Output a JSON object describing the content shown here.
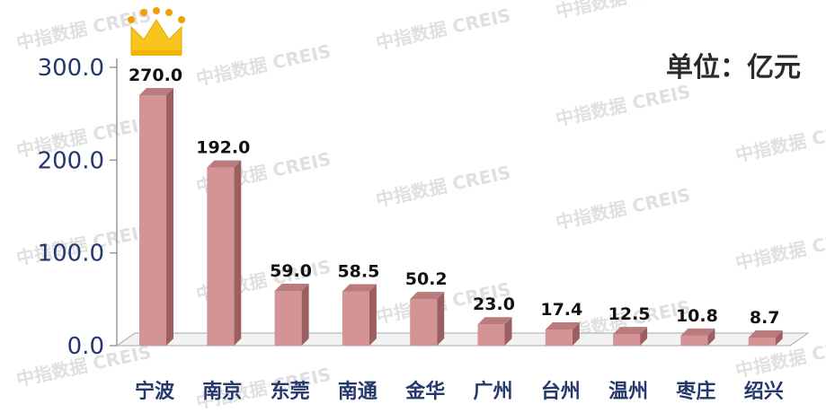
{
  "unit_label": "单位：亿元",
  "watermark": "中指数据 CREIS",
  "chart_data": {
    "type": "bar",
    "categories": [
      "宁波",
      "南京",
      "东莞",
      "南通",
      "金华",
      "广州",
      "台州",
      "温州",
      "枣庄",
      "绍兴"
    ],
    "values": [
      270.0,
      192.0,
      59.0,
      58.5,
      50.2,
      23.0,
      17.4,
      12.5,
      10.8,
      8.7
    ],
    "data_labels": [
      "270.0",
      "192.0",
      "59.0",
      "58.5",
      "50.2",
      "23.0",
      "17.4",
      "12.5",
      "10.8",
      "8.7"
    ],
    "y_ticks": [
      "0.0",
      "100.0",
      "200.0",
      "300.0"
    ],
    "ylim": [
      0,
      300
    ],
    "grid": false,
    "legend": "none",
    "bar_color": "#d49394",
    "bar_side_color": "#9c5f60",
    "bar_top_color": "#b97b7c",
    "highlight_icon": "crown-icon"
  }
}
